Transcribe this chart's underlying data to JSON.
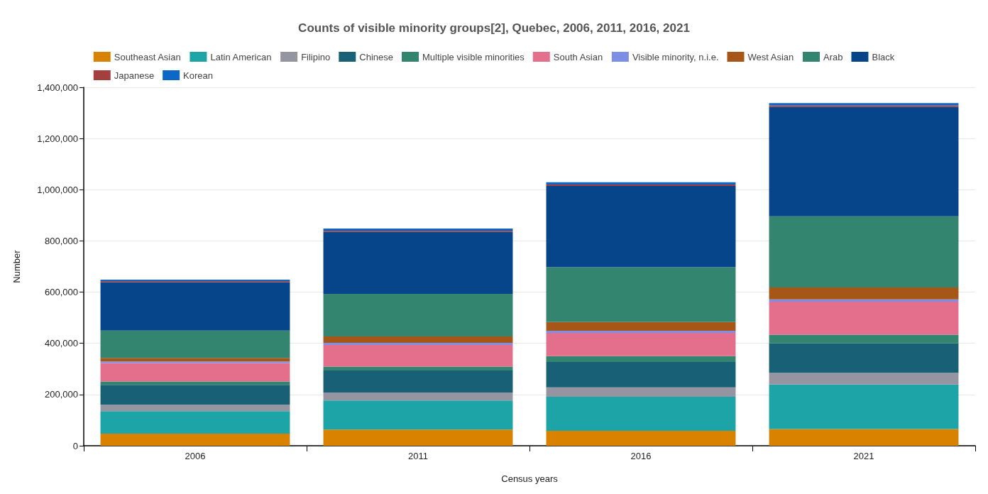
{
  "chart_data": {
    "type": "bar",
    "title": "Counts of visible minority groups[2], Quebec, 2006, 2011, 2016, 2021",
    "xlabel": "Census years",
    "ylabel": "Number",
    "categories": [
      "2006",
      "2011",
      "2016",
      "2021"
    ],
    "stacked": true,
    "legend": "top",
    "grid": "y",
    "ylim": [
      0,
      1400000
    ],
    "yticks": [
      0,
      {
        "value": 200000,
        "label": "200,000"
      },
      {
        "value": 400000,
        "label": "400,000"
      },
      {
        "value": 600000,
        "label": "600,000"
      },
      {
        "value": 800000,
        "label": "800,000"
      },
      {
        "value": 1000000,
        "label": "1,000,000"
      },
      {
        "value": 1200000,
        "label": "1,200,000"
      },
      {
        "value": 1400000,
        "label": "1,400,000"
      }
    ],
    "series": [
      {
        "name": "Southeast Asian",
        "color": "#d98200",
        "values": [
          47000,
          63000,
          58000,
          65000
        ]
      },
      {
        "name": "Latin American",
        "color": "#1da4a6",
        "values": [
          88000,
          114000,
          133000,
          174000
        ]
      },
      {
        "name": "Filipino",
        "color": "#9495a0",
        "values": [
          25000,
          31000,
          37000,
          46000
        ]
      },
      {
        "name": "Chinese",
        "color": "#176075",
        "values": [
          78000,
          86000,
          99000,
          115000
        ]
      },
      {
        "name": "Multiple visible minorities",
        "color": "#348570",
        "values": [
          13000,
          15000,
          23000,
          34000
        ]
      },
      {
        "name": "South Asian",
        "color": "#e36f8c",
        "values": [
          72000,
          85000,
          91000,
          129000
        ]
      },
      {
        "name": "Visible minority, n.i.e.",
        "color": "#7b8fe6",
        "values": [
          6000,
          8000,
          8000,
          9000
        ]
      },
      {
        "name": "West Asian",
        "color": "#a65617",
        "values": [
          14000,
          25000,
          34000,
          46000
        ]
      },
      {
        "name": "Arab",
        "color": "#348570",
        "values": [
          107000,
          166000,
          214000,
          278000
        ]
      },
      {
        "name": "Black",
        "color": "#06458a",
        "values": [
          189000,
          242000,
          318000,
          427000
        ]
      },
      {
        "name": "Japanese",
        "color": "#a33f3f",
        "values": [
          4000,
          5000,
          5000,
          6000
        ]
      },
      {
        "name": "Korean",
        "color": "#0c68c7",
        "values": [
          6000,
          8000,
          9000,
          9000
        ]
      }
    ]
  }
}
